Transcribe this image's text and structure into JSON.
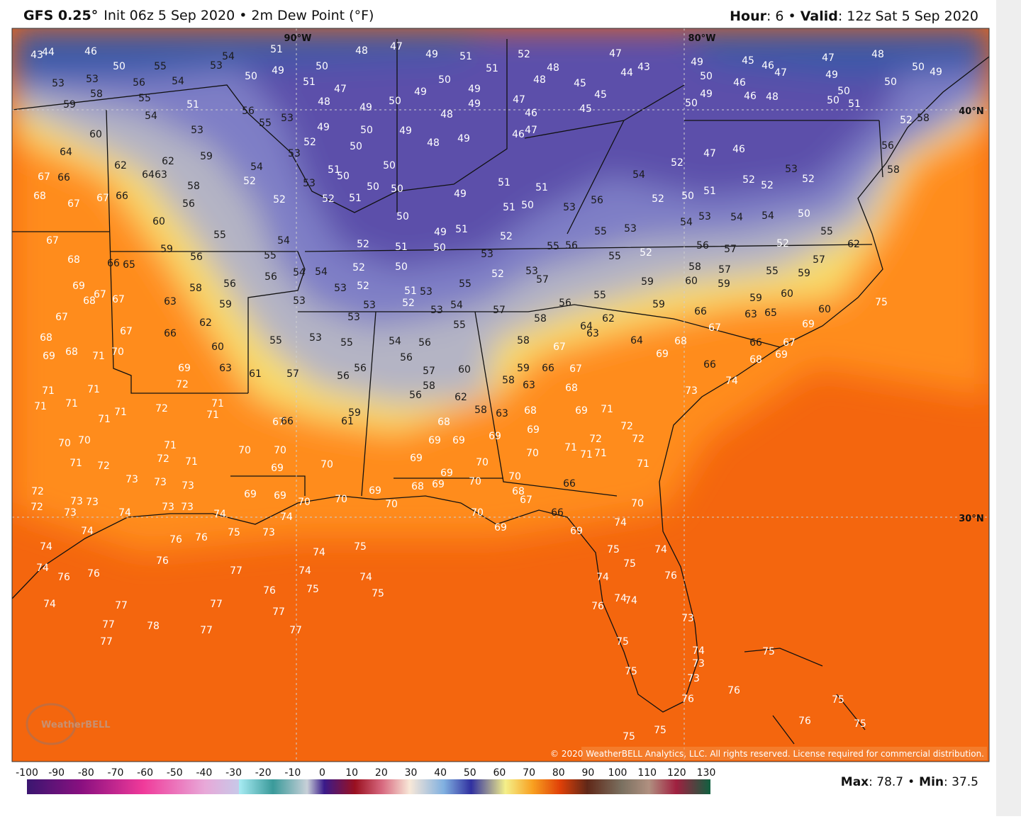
{
  "header": {
    "model": "GFS 0.25°",
    "init": "Init 06z 5 Sep 2020",
    "separator": "•",
    "field": "2m Dew Point (°F)",
    "hour_label": "Hour",
    "hour_value": ": 6",
    "valid_label": "Valid",
    "valid_value": ": 12z Sat 5 Sep 2020"
  },
  "map": {
    "lon_labels": [
      "90°W",
      "80°W"
    ],
    "lat_labels": [
      "40°N",
      "30°N"
    ],
    "logo": "WeatherBELL",
    "copyright": "© 2020 WeatherBELL Analytics, LLC. All rights reserved. License required for commercial distribution.",
    "stations": [
      43,
      44,
      46,
      50,
      55,
      54,
      53,
      51,
      50,
      49,
      50,
      48,
      47,
      49,
      51,
      51,
      52,
      48,
      47,
      44,
      43,
      45,
      46,
      47,
      47,
      48,
      50,
      49,
      49,
      50,
      50,
      50,
      51,
      46,
      48,
      46,
      50,
      49,
      49,
      50,
      45,
      45,
      45,
      48,
      47,
      46,
      46,
      47,
      49,
      49,
      50,
      49,
      48,
      50,
      49,
      47,
      51,
      48,
      49,
      50,
      50,
      49,
      48,
      49,
      52,
      53,
      58,
      53,
      59,
      56,
      55,
      54,
      51,
      54,
      53,
      56,
      55,
      53,
      53,
      60,
      64,
      62,
      62,
      59,
      64,
      63,
      67,
      66,
      68,
      67,
      67,
      66,
      58,
      56,
      54,
      52,
      52,
      53,
      51,
      50,
      52,
      51,
      50,
      50,
      50,
      49,
      50,
      51,
      51,
      51,
      50,
      53,
      56,
      54,
      52,
      47,
      46,
      52,
      50,
      51,
      52,
      52,
      53,
      52,
      54,
      54,
      53,
      54,
      50,
      55,
      58,
      56,
      52,
      58,
      60,
      55,
      54,
      67,
      68,
      66,
      65,
      59,
      56,
      55,
      54,
      54,
      52,
      51,
      49,
      51,
      50,
      52,
      53,
      55,
      56,
      55,
      53,
      55,
      52,
      56,
      57,
      52,
      62,
      57,
      55,
      59,
      57,
      59,
      58,
      60,
      59,
      55,
      56,
      53,
      57,
      52,
      55,
      53,
      51,
      52,
      53,
      54,
      52,
      52,
      53,
      53,
      50,
      53,
      56,
      56,
      58,
      59,
      63,
      69,
      68,
      67,
      67,
      67,
      67,
      66,
      62,
      60,
      63,
      69,
      72,
      53,
      53,
      55,
      61,
      57,
      55,
      54,
      56,
      56,
      56,
      56,
      57,
      60,
      58,
      56,
      62,
      55,
      57,
      58,
      58,
      67,
      64,
      63,
      62,
      59,
      59,
      60,
      66,
      67,
      63,
      65,
      60,
      69,
      75,
      67,
      69,
      66,
      68,
      68,
      64,
      69,
      66,
      74,
      73,
      59,
      66,
      67,
      58,
      63,
      68,
      58,
      63,
      68,
      69,
      71,
      72,
      72,
      72,
      71,
      71,
      71,
      69,
      70,
      69,
      68,
      69,
      69,
      69,
      70,
      69,
      69,
      68,
      70,
      70,
      68,
      67,
      66,
      66,
      69,
      74,
      70,
      71,
      75,
      75,
      74,
      74,
      74,
      74,
      76,
      73,
      74,
      73,
      73,
      76,
      75,
      75,
      75,
      75,
      76,
      76,
      75,
      76,
      75,
      75,
      71,
      71,
      71,
      71,
      71,
      71,
      72,
      71,
      71,
      71,
      72,
      71,
      70,
      70,
      71,
      72,
      73,
      73,
      73,
      72,
      72,
      73,
      73,
      73,
      74,
      73,
      73,
      74,
      74,
      74,
      76,
      76,
      75,
      73,
      74,
      76,
      74,
      76,
      76,
      77,
      74,
      76,
      75,
      74,
      75,
      75,
      74,
      77,
      77,
      77,
      77,
      78,
      77,
      77,
      77,
      74,
      69,
      68,
      71,
      70,
      68,
      70,
      70,
      69,
      70,
      69,
      69,
      70,
      70,
      69,
      70,
      70,
      69,
      59,
      61,
      67,
      66
    ]
  },
  "colorbar": {
    "ticks": [
      -100,
      -90,
      -80,
      -70,
      -60,
      -50,
      -40,
      -30,
      -20,
      -10,
      0,
      10,
      20,
      30,
      40,
      50,
      60,
      70,
      80,
      90,
      100,
      110,
      120,
      130
    ]
  },
  "stats": {
    "max_label": "Max",
    "max_value": ": 78.7",
    "separator": "•",
    "min_label": "Min",
    "min_value": ": 37.5"
  }
}
